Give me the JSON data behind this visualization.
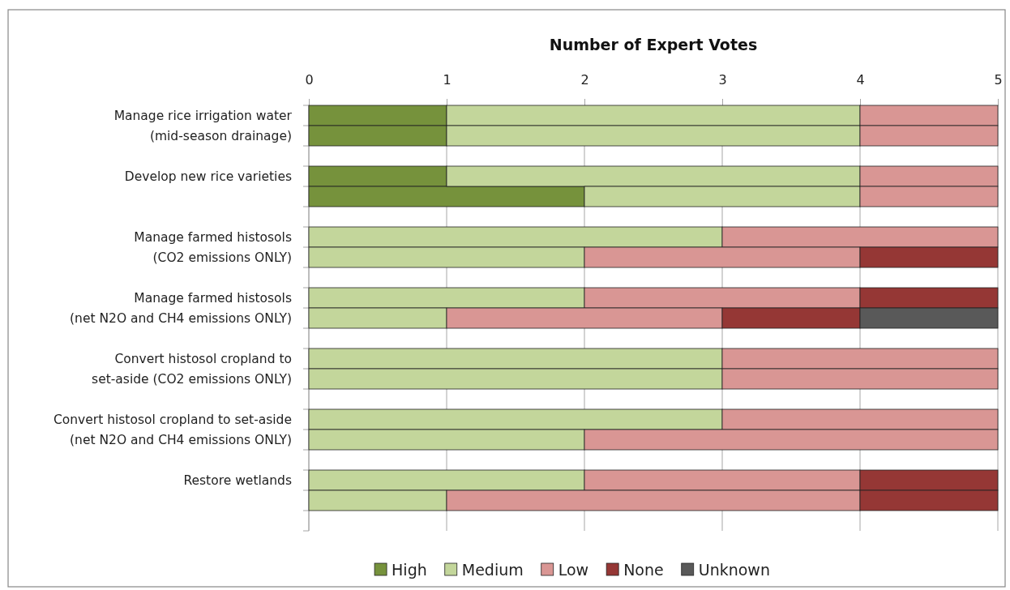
{
  "chart_data": {
    "type": "bar",
    "orientation": "horizontal",
    "stacked": true,
    "title": "Number of Expert Votes",
    "categories": [
      "Manage rice irrigation water\n(mid-season drainage)",
      null,
      null,
      "Develop new rice varieties",
      null,
      null,
      "Manage farmed histosols\n(CO2 emissions ONLY)",
      null,
      null,
      "Manage farmed histosols\n(net N2O and CH4 emissions ONLY)",
      null,
      null,
      "Convert histosol cropland to\nset-aside (CO2 emissions ONLY)",
      null,
      null,
      "Convert histosol cropland to set-aside\n(net N2O and CH4 emissions ONLY)",
      null,
      null,
      "Restore wetlands",
      null,
      null
    ],
    "series": [
      {
        "name": "High",
        "color": "#76923c",
        "values": [
          1,
          1,
          null,
          1,
          2,
          null,
          null,
          null,
          null,
          null,
          null,
          null,
          null,
          null,
          null,
          null,
          null,
          null,
          null,
          null,
          null
        ]
      },
      {
        "name": "Medium",
        "color": "#c3d69b",
        "values": [
          3,
          3,
          null,
          3,
          2,
          null,
          3,
          2,
          null,
          2,
          1,
          null,
          3,
          3,
          null,
          3,
          2,
          null,
          2,
          1,
          null
        ]
      },
      {
        "name": "Low",
        "color": "#d99694",
        "values": [
          1,
          1,
          null,
          1,
          1,
          null,
          2,
          2,
          null,
          2,
          2,
          null,
          2,
          2,
          null,
          2,
          3,
          null,
          2,
          3,
          null
        ]
      },
      {
        "name": "None",
        "color": "#953735",
        "values": [
          null,
          null,
          null,
          null,
          null,
          null,
          null,
          1,
          null,
          1,
          1,
          null,
          null,
          null,
          null,
          null,
          null,
          null,
          1,
          1,
          null
        ]
      },
      {
        "name": "Unknown",
        "color": "#595959",
        "values": [
          null,
          null,
          null,
          null,
          null,
          null,
          null,
          null,
          null,
          null,
          1,
          null,
          null,
          null,
          null,
          null,
          null,
          null,
          null,
          null,
          null
        ]
      }
    ],
    "xlim": [
      0,
      5
    ],
    "xticks": [
      0,
      1,
      2,
      3,
      4,
      5
    ],
    "grid": "x",
    "legend": "bottom"
  }
}
